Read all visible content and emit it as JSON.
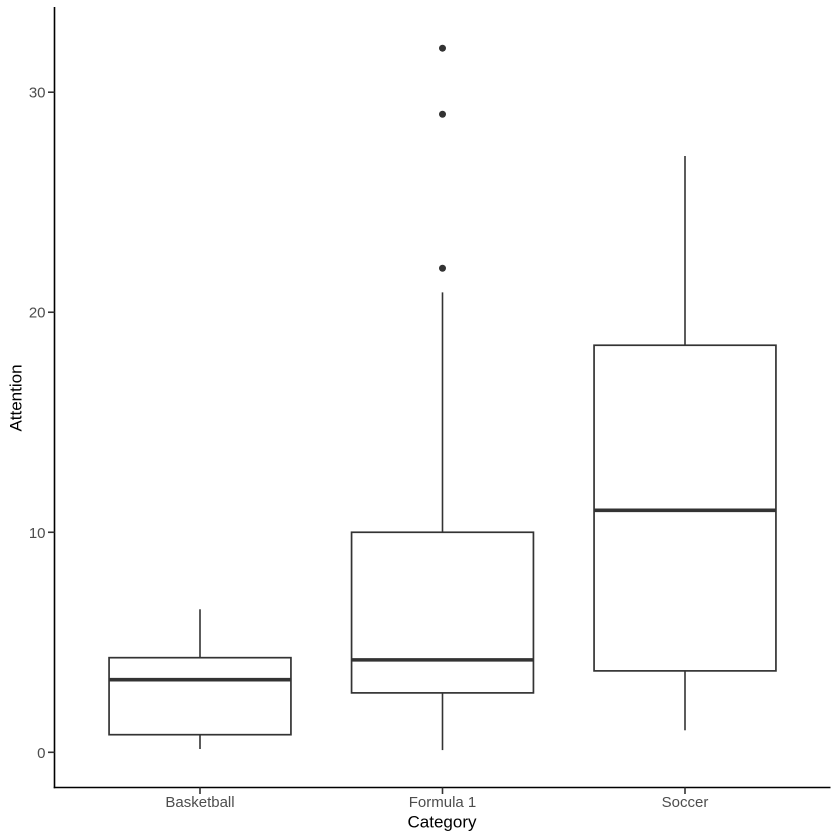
{
  "chart_data": {
    "type": "boxplot",
    "title": "",
    "xlabel": "Category",
    "ylabel": "Attention",
    "categories": [
      "Basketball",
      "Formula 1",
      "Soccer"
    ],
    "y_ticks": [
      0,
      10,
      20,
      30
    ],
    "ylim": [
      0,
      32
    ],
    "grid": false,
    "legend": "none",
    "series": [
      {
        "name": "Basketball",
        "whisker_low": 0.15,
        "q1": 0.8,
        "median": 3.3,
        "q3": 4.3,
        "whisker_high": 6.5,
        "outliers": []
      },
      {
        "name": "Formula 1",
        "whisker_low": 0.1,
        "q1": 2.7,
        "median": 4.2,
        "q3": 10.0,
        "whisker_high": 20.9,
        "outliers": [
          22,
          29,
          32
        ]
      },
      {
        "name": "Soccer",
        "whisker_low": 1.0,
        "q1": 3.7,
        "median": 11.0,
        "q3": 18.5,
        "whisker_high": 27.1,
        "outliers": []
      }
    ],
    "colors": {
      "background": "#ffffff",
      "box_stroke": "#333333",
      "box_fill": "#ffffff",
      "median_stroke": "#333333",
      "whisker_stroke": "#333333",
      "outlier_fill": "#333333",
      "axis_line": "#000000",
      "tick_mark": "#333333",
      "tick_label": "#4d4d4d",
      "axis_title": "#000000"
    }
  }
}
